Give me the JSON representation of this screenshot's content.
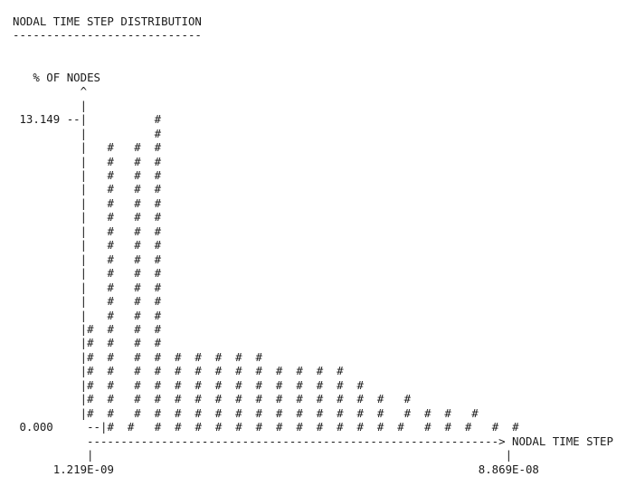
{
  "chart_data": {
    "type": "bar",
    "title": "NODAL TIME STEP DISTRIBUTION",
    "underline": "----------------------------",
    "ylabel": "% OF NODES",
    "xlabel": "NODAL TIME STEP",
    "y_axis_ticks": [
      "13.149",
      "0.000"
    ],
    "x_axis_ticks": [
      "1.219E-09",
      "8.869E-08"
    ],
    "ylim": [
      0,
      13.149
    ],
    "xlim": [
      1.219e-09,
      8.869e-08
    ],
    "max_height": 23,
    "bars": [
      {
        "col": 0,
        "height": 8
      },
      {
        "col": 1,
        "height": 21
      },
      {
        "col": 2,
        "height": 21
      },
      {
        "col": 3,
        "height": 23
      },
      {
        "col": 4,
        "height": 6
      },
      {
        "col": 5,
        "height": 6
      },
      {
        "col": 6,
        "height": 6
      },
      {
        "col": 7,
        "height": 6
      },
      {
        "col": 8,
        "height": 6
      },
      {
        "col": 9,
        "height": 5
      },
      {
        "col": 10,
        "height": 5
      },
      {
        "col": 11,
        "height": 5
      },
      {
        "col": 12,
        "height": 5
      },
      {
        "col": 13,
        "height": 4
      },
      {
        "col": 14,
        "height": 3
      },
      {
        "col": 15,
        "height": 3
      },
      {
        "col": 16,
        "height": 2
      },
      {
        "col": 17,
        "height": 2
      },
      {
        "col": 18,
        "height": 2
      },
      {
        "col": 19,
        "height": 1
      }
    ]
  }
}
